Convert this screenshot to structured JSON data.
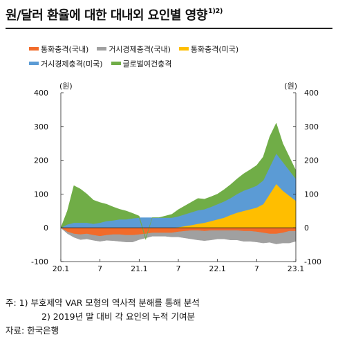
{
  "title": {
    "main": "원/달러 환율에 대한 대내외 요인별 영향",
    "superscript": "1)2)"
  },
  "notes": {
    "note1": "주:  1) 부호제약 VAR 모형의 역사적 분해를 통해 분석",
    "note2": "2) 2019년 말 대비 각 요인의 누적 기여분",
    "source": "자료: 한국은행"
  },
  "chart_data": {
    "type": "area",
    "title": "원/달러 환율에 대한 대내외 요인별 영향",
    "ylabel_left": "(원)",
    "ylabel_right": "(원)",
    "ylim": [
      -100,
      400
    ],
    "yticks": [
      -100,
      0,
      100,
      200,
      300,
      400
    ],
    "xticks": [
      "20.1",
      "7",
      "21.1",
      "7",
      "22.1",
      "7",
      "23.1"
    ],
    "x": [
      "2020-01",
      "2020-02",
      "2020-03",
      "2020-04",
      "2020-05",
      "2020-06",
      "2020-07",
      "2020-08",
      "2020-09",
      "2020-10",
      "2020-11",
      "2020-12",
      "2021-01",
      "2021-02",
      "2021-03",
      "2021-04",
      "2021-05",
      "2021-06",
      "2021-07",
      "2021-08",
      "2021-09",
      "2021-10",
      "2021-11",
      "2021-12",
      "2022-01",
      "2022-02",
      "2022-03",
      "2022-04",
      "2022-05",
      "2022-06",
      "2022-07",
      "2022-08",
      "2022-09",
      "2022-10",
      "2022-11",
      "2022-12",
      "2023-01"
    ],
    "grid": false,
    "legend_position": "top",
    "series": [
      {
        "name": "통화충격(국내)",
        "color": "#f26b2a",
        "values": [
          0,
          -12,
          -18,
          -20,
          -18,
          -22,
          -25,
          -22,
          -20,
          -20,
          -22,
          -22,
          -20,
          -18,
          -15,
          -15,
          -15,
          -15,
          -12,
          -10,
          -8,
          -8,
          -10,
          -8,
          -8,
          -8,
          -8,
          -8,
          -10,
          -10,
          -12,
          -15,
          -18,
          -18,
          -15,
          -10,
          -10
        ]
      },
      {
        "name": "거시경제충격(국내)",
        "color": "#a0a0a0",
        "values": [
          0,
          -5,
          -10,
          -15,
          -15,
          -15,
          -15,
          -15,
          -18,
          -20,
          -20,
          -20,
          -15,
          -12,
          -10,
          -10,
          -10,
          -12,
          -15,
          -20,
          -25,
          -28,
          -28,
          -28,
          -25,
          -25,
          -28,
          -28,
          -30,
          -30,
          -30,
          -30,
          -25,
          -30,
          -30,
          -35,
          -30
        ]
      },
      {
        "name": "통화충격(미국)",
        "color": "#ffbe00",
        "values": [
          0,
          0,
          0,
          0,
          0,
          0,
          0,
          0,
          0,
          0,
          0,
          0,
          0,
          0,
          0,
          0,
          0,
          0,
          2,
          5,
          8,
          12,
          15,
          20,
          25,
          30,
          38,
          45,
          50,
          55,
          60,
          70,
          100,
          130,
          110,
          95,
          80
        ]
      },
      {
        "name": "거시경제충격(미국)",
        "color": "#5b9bd5",
        "values": [
          0,
          10,
          15,
          15,
          15,
          12,
          15,
          20,
          22,
          25,
          25,
          28,
          30,
          30,
          30,
          30,
          30,
          30,
          32,
          35,
          38,
          40,
          40,
          42,
          45,
          48,
          50,
          55,
          60,
          62,
          65,
          70,
          80,
          90,
          85,
          75,
          65
        ]
      },
      {
        "name": "글로벌여건충격",
        "color": "#70ad47",
        "values": [
          0,
          40,
          110,
          100,
          85,
          70,
          60,
          50,
          40,
          30,
          25,
          15,
          5,
          -5,
          0,
          0,
          5,
          10,
          20,
          25,
          30,
          35,
          30,
          30,
          30,
          35,
          40,
          45,
          50,
          55,
          60,
          70,
          90,
          90,
          55,
          40,
          25
        ]
      }
    ]
  }
}
